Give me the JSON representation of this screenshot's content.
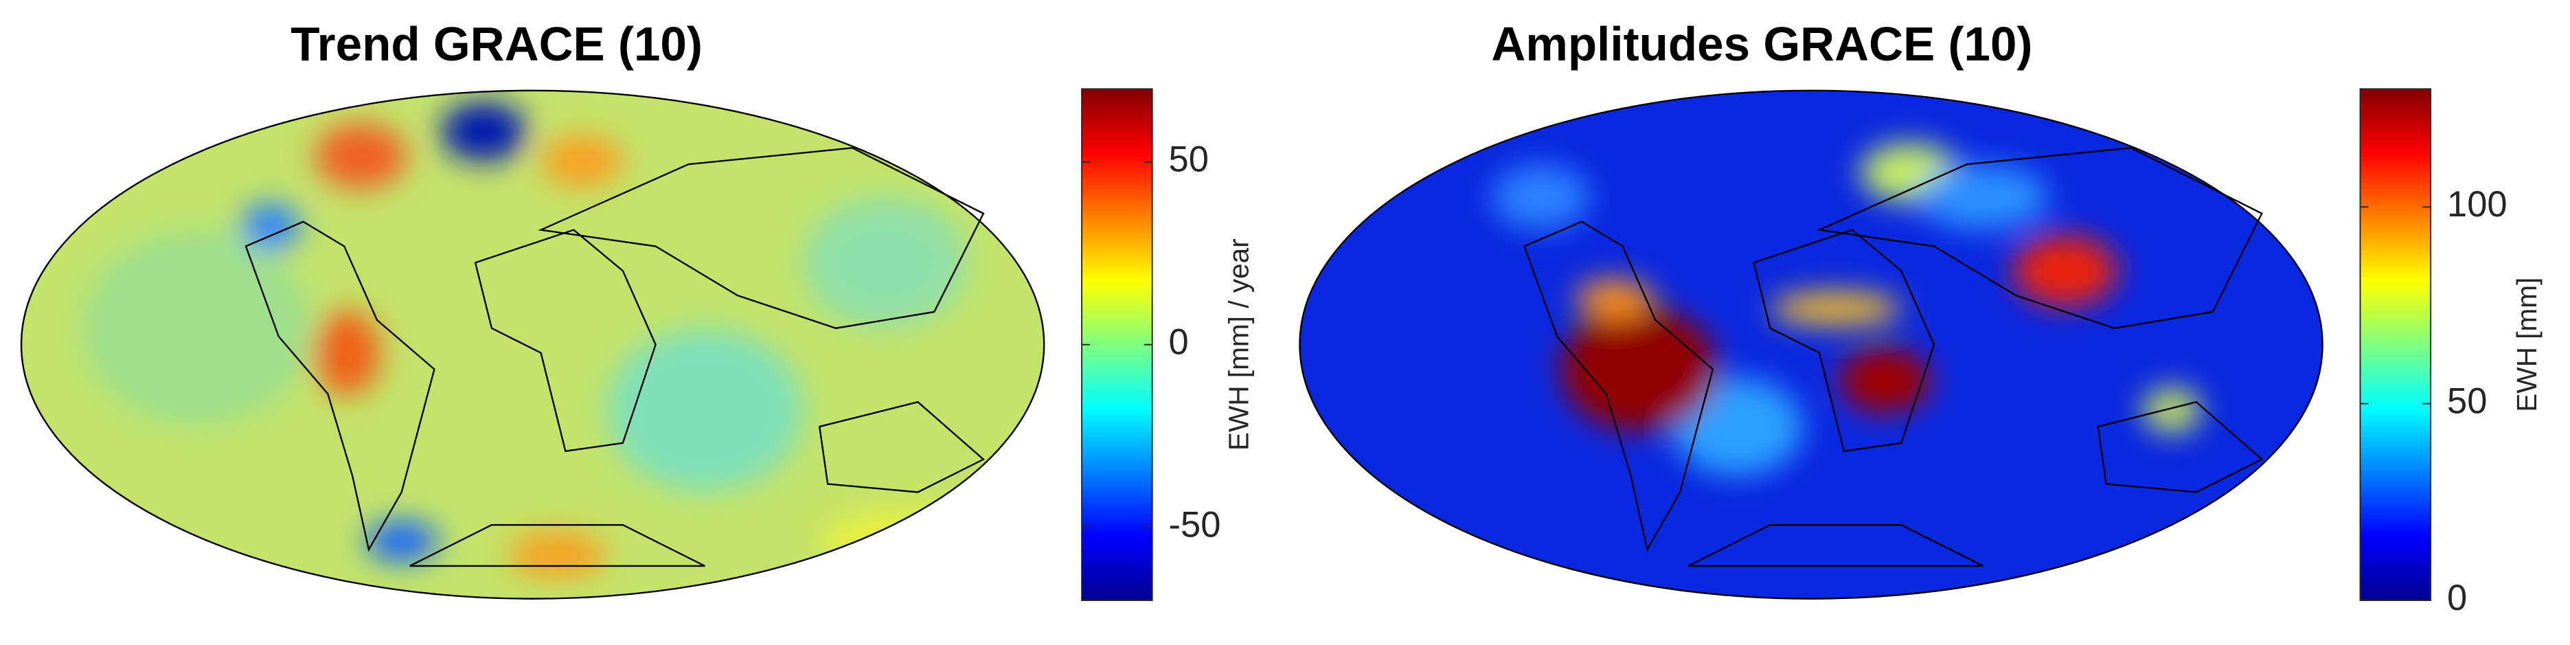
{
  "panels": [
    {
      "title": "Trend GRACE (10)",
      "colorbar": {
        "label": "EWH [mm] / year",
        "lim": [
          -70,
          70
        ],
        "ticks": [
          -50,
          0,
          50
        ]
      }
    },
    {
      "title": "Amplitudes GRACE (10)",
      "colorbar": {
        "label": "EWH [mm]",
        "lim": [
          0,
          130
        ],
        "ticks": [
          0,
          50,
          100
        ]
      }
    }
  ]
}
